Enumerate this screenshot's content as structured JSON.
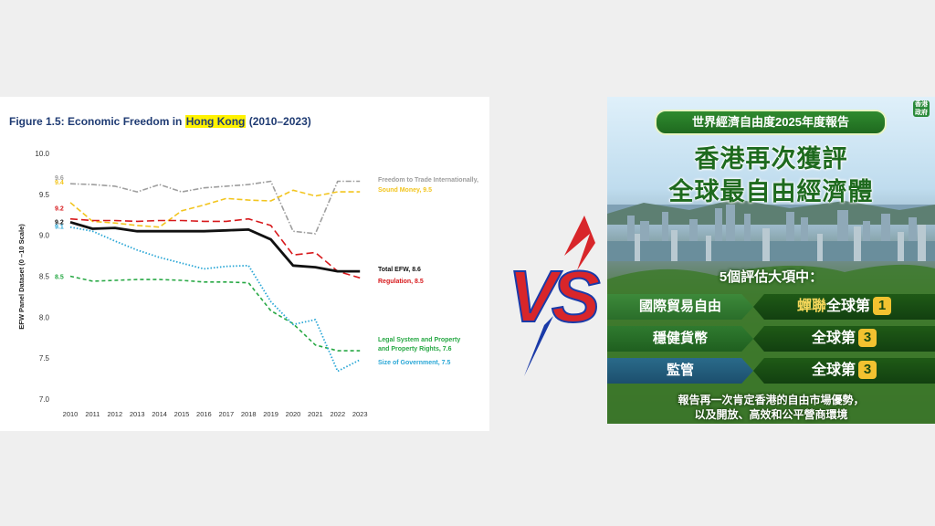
{
  "chart_data": {
    "type": "line",
    "title_parts": [
      "Figure 1.5: Economic Freedom in ",
      "Hong Kong",
      " (2010–2023)"
    ],
    "ylabel": "EFW Panel Dataset (0 –10 Scale)",
    "xlabel": "",
    "x": [
      "2010",
      "2011",
      "2012",
      "2013",
      "2014",
      "2015",
      "2016",
      "2017",
      "2018",
      "2019",
      "2020",
      "2021",
      "2022",
      "2023"
    ],
    "y_ticks": [
      "10.0",
      "9.5",
      "9.0",
      "8.5",
      "8.0",
      "7.5",
      "7.0"
    ],
    "ylim": [
      7.0,
      10.0
    ],
    "grid": false,
    "series": [
      {
        "name": "Freedom to Trade Internationally,",
        "start_label": "9.6",
        "color": "#9e9e9e",
        "dash": "6,2,1.5,2",
        "width": 1.6,
        "values": [
          9.63,
          9.62,
          9.6,
          9.53,
          9.62,
          9.53,
          9.58,
          9.6,
          9.62,
          9.66,
          9.05,
          9.02,
          9.66,
          9.66
        ]
      },
      {
        "name": "Sound Money, 9.5",
        "start_label": "9.4",
        "color": "#f2c51f",
        "dash": "6,3",
        "width": 1.6,
        "values": [
          9.4,
          9.17,
          9.15,
          9.12,
          9.1,
          9.3,
          9.37,
          9.45,
          9.43,
          9.42,
          9.55,
          9.48,
          9.53,
          9.53
        ]
      },
      {
        "name": "Regulation, 8.5",
        "start_label": "9.2",
        "color": "#d7191c",
        "dash": "8,4",
        "width": 1.6,
        "values": [
          9.2,
          9.18,
          9.18,
          9.17,
          9.18,
          9.18,
          9.17,
          9.17,
          9.2,
          9.12,
          8.76,
          8.79,
          8.56,
          8.48
        ]
      },
      {
        "name": "Total EFW, 8.6",
        "start_label": "9.2",
        "color": "#111111",
        "dash": "",
        "width": 2.8,
        "values": [
          9.16,
          9.08,
          9.09,
          9.05,
          9.05,
          9.05,
          9.05,
          9.06,
          9.07,
          8.95,
          8.63,
          8.61,
          8.56,
          8.56
        ]
      },
      {
        "name": "Legal System and Property and Property Rights, 7.6",
        "start_label": "8.5",
        "color": "#27a844",
        "dash": "4,3",
        "width": 1.6,
        "values": [
          8.5,
          8.44,
          8.45,
          8.46,
          8.46,
          8.45,
          8.43,
          8.43,
          8.42,
          8.08,
          7.92,
          7.66,
          7.59,
          7.59
        ]
      },
      {
        "name": "Size of Government, 7.5",
        "start_label": "9.1",
        "color": "#2aa7d6",
        "dash": "1.5,2",
        "width": 1.8,
        "values": [
          9.1,
          9.05,
          8.93,
          8.82,
          8.73,
          8.66,
          8.59,
          8.62,
          8.63,
          8.19,
          7.91,
          7.97,
          7.34,
          7.48
        ]
      }
    ]
  },
  "vs": {
    "text": "VS"
  },
  "poster": {
    "pill": "世界經濟自由度2025年度報告",
    "logo": "香港 政府",
    "headline1": "香港再次獲評",
    "headline2": "全球最自由經濟體",
    "subheading": "5個評估大項中：",
    "rows": [
      {
        "label": "國際貿易自由",
        "result_prefix": "蟬聯",
        "result_main": "全球第",
        "rank": "1"
      },
      {
        "label": "穩健貨幣",
        "result_prefix": "",
        "result_main": "全球第",
        "rank": "3"
      },
      {
        "label": "監管",
        "result_prefix": "",
        "result_main": "全球第",
        "rank": "3"
      }
    ],
    "footer1": "報告再一次肯定香港的自由市場優勢，",
    "footer2": "以及開放、高效和公平營商環境"
  }
}
